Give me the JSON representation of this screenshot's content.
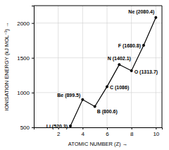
{
  "chart_data": {
    "type": "line",
    "xlabel": "ATOMIC NUMBER (Z) →",
    "ylabel": "IONISATION ENERGY (kJ MOL⁻¹) →",
    "x": [
      3,
      4,
      5,
      6,
      7,
      8,
      9,
      10
    ],
    "values": [
      520.3,
      899.5,
      800.6,
      1086,
      1402.1,
      1313.7,
      1680.8,
      2080.4
    ],
    "value_labels": [
      "Li (520.3)",
      "Be (899.5)",
      "B (800.6)",
      "C (1086)",
      "N (1402.1)",
      "O (1313.7)",
      "F (1680.8)",
      "Ne (2080.4)"
    ],
    "data_labels": true,
    "color": "#000000",
    "marker": "circle",
    "line_style": "solid",
    "xlim": [
      0,
      10.5
    ],
    "xticks": [
      2,
      4,
      6,
      8,
      10
    ],
    "ylim": [
      500,
      2250
    ],
    "yticks": [
      500,
      1000,
      1500,
      2000
    ],
    "grid": true
  }
}
